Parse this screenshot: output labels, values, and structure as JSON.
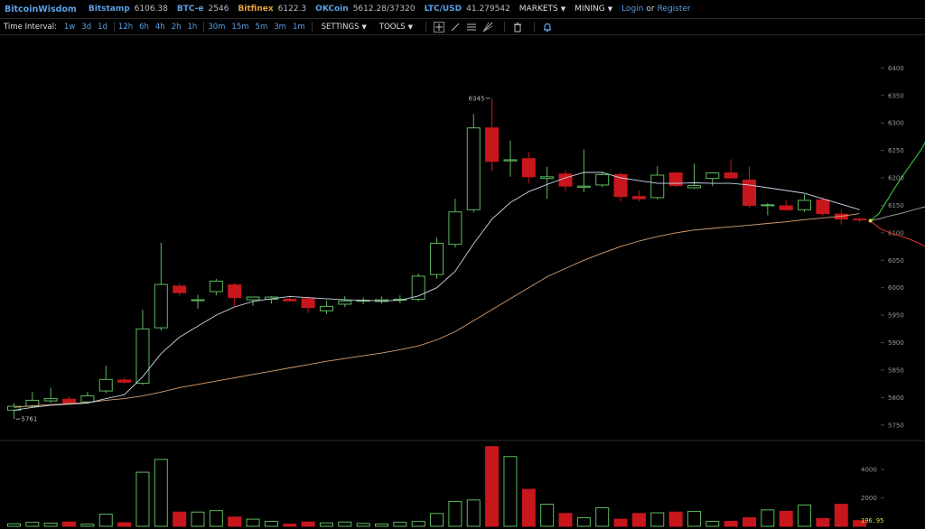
{
  "header": {
    "brand": "BitcoinWisdom",
    "exchanges": [
      {
        "name": "Bitstamp",
        "value": "6106.38",
        "color": "#5aa0e6"
      },
      {
        "name": "BTC-e",
        "value": "2546",
        "color": "#5aa0e6"
      },
      {
        "name": "Bitfinex",
        "value": "6122.3",
        "color": "#e8a040"
      },
      {
        "name": "OKCoin",
        "value": "5612.28/37320",
        "color": "#5aa0e6"
      },
      {
        "name": "LTC/USD",
        "value": "41.279542",
        "color": "#5aa0e6"
      }
    ],
    "markets_label": "MARKETS",
    "mining_label": "MINING",
    "login_label": "Login",
    "or_label": "or",
    "register_label": "Register"
  },
  "toolbar": {
    "label": "Time Interval:",
    "intervals_a": [
      "1w",
      "3d",
      "1d"
    ],
    "intervals_b": [
      "12h",
      "6h",
      "4h",
      "2h",
      "1h"
    ],
    "intervals_c": [
      "30m",
      "15m",
      "5m",
      "3m",
      "1m"
    ],
    "settings_label": "SETTINGS",
    "tools_label": "TOOLS",
    "tool_icons": [
      "crosshair-icon",
      "line-tool-icon",
      "horizontal-lines-icon",
      "fib-tool-icon",
      "trash-icon",
      "bell-icon"
    ]
  },
  "chart_data": {
    "type": "candlestick",
    "price_axis": {
      "ticks": [
        6400,
        6350,
        6300,
        6250,
        6200,
        6150,
        6100,
        6050,
        6000,
        5950,
        5900,
        5850,
        5800,
        5750
      ],
      "range": [
        5725,
        6445
      ]
    },
    "volume_axis": {
      "ticks": [
        4000,
        2000
      ],
      "range": [
        0,
        5900
      ]
    },
    "candles": [
      {
        "o": 5777,
        "h": 5790,
        "l": 5761,
        "c": 5784
      },
      {
        "o": 5784,
        "h": 5810,
        "l": 5782,
        "c": 5795
      },
      {
        "o": 5794,
        "h": 5818,
        "l": 5790,
        "c": 5798
      },
      {
        "o": 5797,
        "h": 5802,
        "l": 5787,
        "c": 5790
      },
      {
        "o": 5792,
        "h": 5810,
        "l": 5790,
        "c": 5803
      },
      {
        "o": 5812,
        "h": 5858,
        "l": 5808,
        "c": 5833
      },
      {
        "o": 5832,
        "h": 5836,
        "l": 5826,
        "c": 5828
      },
      {
        "o": 5826,
        "h": 5960,
        "l": 5823,
        "c": 5925
      },
      {
        "o": 5927,
        "h": 6082,
        "l": 5922,
        "c": 6006
      },
      {
        "o": 6003,
        "h": 6008,
        "l": 5986,
        "c": 5991
      },
      {
        "o": 5977,
        "h": 5987,
        "l": 5962,
        "c": 5978
      },
      {
        "o": 5993,
        "h": 6016,
        "l": 5986,
        "c": 6012
      },
      {
        "o": 6005,
        "h": 6008,
        "l": 5966,
        "c": 5982
      },
      {
        "o": 5978,
        "h": 5984,
        "l": 5967,
        "c": 5983
      },
      {
        "o": 5979,
        "h": 5985,
        "l": 5971,
        "c": 5983
      },
      {
        "o": 5979,
        "h": 5986,
        "l": 5975,
        "c": 5976
      },
      {
        "o": 5980,
        "h": 5984,
        "l": 5954,
        "c": 5964
      },
      {
        "o": 5958,
        "h": 5976,
        "l": 5952,
        "c": 5966
      },
      {
        "o": 5970,
        "h": 5985,
        "l": 5965,
        "c": 5976
      },
      {
        "o": 5976,
        "h": 5982,
        "l": 5970,
        "c": 5977
      },
      {
        "o": 5975,
        "h": 5984,
        "l": 5971,
        "c": 5978
      },
      {
        "o": 5978,
        "h": 5986,
        "l": 5972,
        "c": 5979
      },
      {
        "o": 5979,
        "h": 6026,
        "l": 5975,
        "c": 6021
      },
      {
        "o": 6024,
        "h": 6091,
        "l": 6016,
        "c": 6081
      },
      {
        "o": 6079,
        "h": 6162,
        "l": 6073,
        "c": 6138
      },
      {
        "o": 6142,
        "h": 6316,
        "l": 6137,
        "c": 6291
      },
      {
        "o": 6291,
        "h": 6345,
        "l": 6212,
        "c": 6230
      },
      {
        "o": 6231,
        "h": 6268,
        "l": 6202,
        "c": 6233
      },
      {
        "o": 6235,
        "h": 6247,
        "l": 6190,
        "c": 6202
      },
      {
        "o": 6199,
        "h": 6220,
        "l": 6162,
        "c": 6202
      },
      {
        "o": 6207,
        "h": 6214,
        "l": 6176,
        "c": 6185
      },
      {
        "o": 6183,
        "h": 6252,
        "l": 6174,
        "c": 6185
      },
      {
        "o": 6187,
        "h": 6211,
        "l": 6183,
        "c": 6206
      },
      {
        "o": 6206,
        "h": 6210,
        "l": 6157,
        "c": 6166
      },
      {
        "o": 6166,
        "h": 6177,
        "l": 6157,
        "c": 6162
      },
      {
        "o": 6164,
        "h": 6221,
        "l": 6161,
        "c": 6205
      },
      {
        "o": 6209,
        "h": 6210,
        "l": 6183,
        "c": 6186
      },
      {
        "o": 6182,
        "h": 6226,
        "l": 6180,
        "c": 6186
      },
      {
        "o": 6199,
        "h": 6210,
        "l": 6185,
        "c": 6209
      },
      {
        "o": 6209,
        "h": 6234,
        "l": 6198,
        "c": 6200
      },
      {
        "o": 6196,
        "h": 6221,
        "l": 6145,
        "c": 6150
      },
      {
        "o": 6150,
        "h": 6154,
        "l": 6132,
        "c": 6151
      },
      {
        "o": 6149,
        "h": 6159,
        "l": 6140,
        "c": 6142
      },
      {
        "o": 6142,
        "h": 6170,
        "l": 6138,
        "c": 6159
      },
      {
        "o": 6160,
        "h": 6165,
        "l": 6130,
        "c": 6135
      },
      {
        "o": 6134,
        "h": 6142,
        "l": 6115,
        "c": 6125
      },
      {
        "o": 6125,
        "h": 6127,
        "l": 6119,
        "c": 6124
      }
    ],
    "volumes": [
      180,
      280,
      220,
      300,
      150,
      850,
      250,
      3800,
      4700,
      1000,
      1000,
      1100,
      650,
      500,
      350,
      150,
      300,
      240,
      300,
      200,
      160,
      280,
      340,
      900,
      1750,
      1850,
      5600,
      4900,
      2600,
      1550,
      900,
      600,
      1300,
      500,
      900,
      950,
      1000,
      1050,
      350,
      350,
      600,
      1150,
      1050,
      1500,
      550,
      1550,
      400
    ],
    "ma_fast": [
      5777,
      5782,
      5786,
      5788,
      5790,
      5798,
      5805,
      5838,
      5880,
      5910,
      5930,
      5950,
      5965,
      5975,
      5980,
      5984,
      5982,
      5980,
      5978,
      5977,
      5976,
      5977,
      5985,
      6000,
      6030,
      6080,
      6125,
      6155,
      6175,
      6188,
      6200,
      6210,
      6210,
      6200,
      6195,
      6190,
      6190,
      6191,
      6190,
      6190,
      6187,
      6182,
      6177,
      6172,
      6162,
      6152,
      6142
    ],
    "ma_slow": [
      5782,
      5785,
      5787,
      5789,
      5791,
      5795,
      5798,
      5803,
      5810,
      5818,
      5824,
      5830,
      5836,
      5842,
      5848,
      5854,
      5860,
      5866,
      5871,
      5876,
      5881,
      5887,
      5894,
      5905,
      5920,
      5940,
      5960,
      5980,
      6000,
      6020,
      6035,
      6050,
      6063,
      6075,
      6085,
      6093,
      6100,
      6105,
      6108,
      6111,
      6114,
      6117,
      6120,
      6124,
      6127,
      6130,
      6135
    ],
    "projection_start": 6122,
    "proj_up": [
      6135,
      6160,
      6185,
      6208,
      6230,
      6252,
      6280
    ],
    "proj_down": [
      6107,
      6100,
      6094,
      6088,
      6080,
      6070
    ],
    "proj_mid": [
      6126,
      6131,
      6135,
      6140,
      6145,
      6150
    ],
    "annotations": {
      "high_label": "6345",
      "low_label": "5761",
      "volume_label": "196.95"
    }
  }
}
